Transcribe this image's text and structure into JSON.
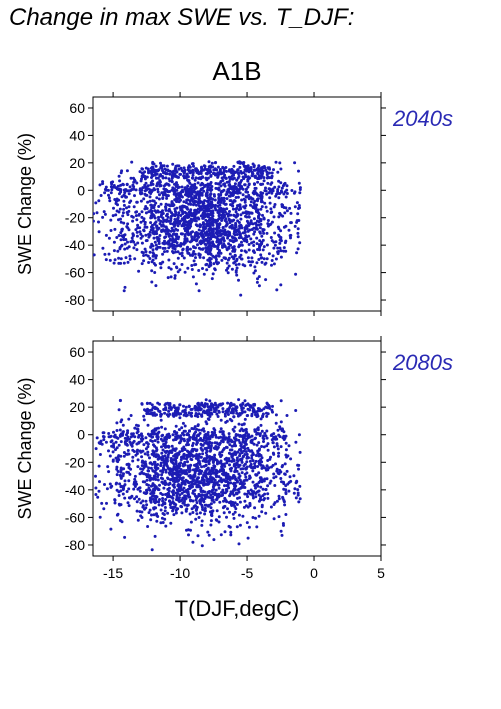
{
  "figure_title": "Change in max SWE vs. T_DJF:",
  "scenario": "A1B",
  "xlabel": "T(DJF,degC)",
  "marker_color": "#1c1cb4",
  "period_color": "#2a2ab4",
  "chart_data": [
    {
      "type": "scatter",
      "period_label": "2040s",
      "ylabel": "SWE Change (%)",
      "xlim": [
        -16.5,
        5
      ],
      "ylim": [
        -88,
        68
      ],
      "x_ticks": [
        -15,
        -10,
        -5,
        0,
        5
      ],
      "y_ticks": [
        -80,
        -60,
        -40,
        -20,
        0,
        20,
        40,
        60
      ],
      "grid": false,
      "x_range_of_points": [
        -16.5,
        -1
      ],
      "y_range_of_points": [
        -83,
        21
      ],
      "note": "dense cloud of several thousand points"
    },
    {
      "type": "scatter",
      "period_label": "2080s",
      "ylabel": "SWE Change (%)",
      "xlim": [
        -16.5,
        5
      ],
      "ylim": [
        -88,
        68
      ],
      "x_ticks": [
        -15,
        -10,
        -5,
        0,
        5
      ],
      "y_ticks": [
        -80,
        -60,
        -40,
        -20,
        0,
        20,
        40,
        60
      ],
      "grid": false,
      "x_range_of_points": [
        -16.5,
        -1
      ],
      "y_range_of_points": [
        -88,
        26
      ],
      "note": "dense cloud of several thousand points"
    }
  ]
}
